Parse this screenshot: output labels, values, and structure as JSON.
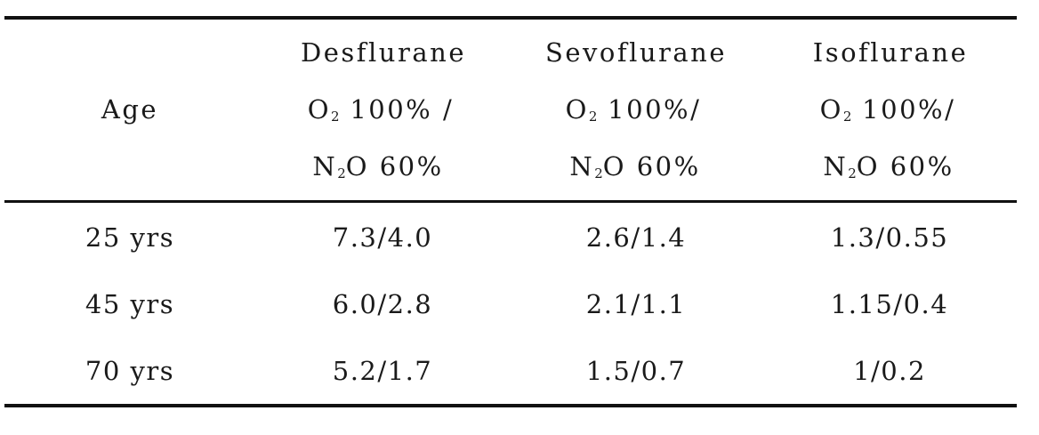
{
  "table": {
    "header": {
      "age": "Age",
      "columns": [
        {
          "name": "Desflurane",
          "line2_prefix": "O",
          "line2_sub": "2",
          "line2_suffix": " 100% /",
          "line3_prefix": "N",
          "line3_sub": "2",
          "line3_suffix": "O 60%"
        },
        {
          "name": "Sevoflurane",
          "line2_prefix": "O",
          "line2_sub": "2",
          "line2_suffix": " 100%/",
          "line3_prefix": "N",
          "line3_sub": "2",
          "line3_suffix": "O 60%"
        },
        {
          "name": "Isoflurane",
          "line2_prefix": "O",
          "line2_sub": "2",
          "line2_suffix": " 100%/",
          "line3_prefix": "N",
          "line3_sub": "2",
          "line3_suffix": "O 60%"
        }
      ]
    },
    "rows": [
      {
        "age": "25 yrs",
        "values": [
          "7.3/4.0",
          "2.6/1.4",
          "1.3/0.55"
        ]
      },
      {
        "age": "45 yrs",
        "values": [
          "6.0/2.8",
          "2.1/1.1",
          "1.15/0.4"
        ]
      },
      {
        "age": "70 yrs",
        "values": [
          "5.2/1.7",
          "1.5/0.7",
          "1/0.2"
        ]
      }
    ]
  }
}
